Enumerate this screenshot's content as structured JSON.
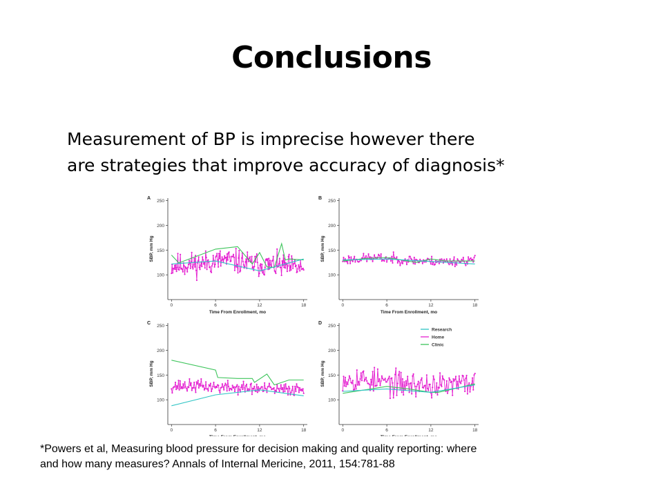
{
  "slide": {
    "title": "Conclusions",
    "body_lines": [
      "Measurement of BP is imprecise however there",
      "are strategies that improve accuracy of diagnosis*"
    ],
    "footnote_lines": [
      "*Powers et al, Measuring blood pressure for decision making and quality reporting: where",
      "and how many measures? Annals of Internal Mericine, 2011, 154:781-88"
    ]
  },
  "colors": {
    "research": "#2ec4c4",
    "home": "#e41fd0",
    "clinic": "#3cc45a",
    "axis": "#333333"
  },
  "chart_data": [
    {
      "panel": "A",
      "type": "line",
      "xlabel": "Time From Enrollment, mo",
      "ylabel": "SBP, mm Hg",
      "xticks": [
        0,
        6,
        12,
        18
      ],
      "yticks": [
        100,
        150,
        200,
        250
      ],
      "xlim": [
        -0.5,
        18.5
      ],
      "ylim": [
        50,
        255
      ],
      "series": [
        {
          "name": "Research",
          "color_key": "research",
          "x": [
            0,
            6,
            12,
            18
          ],
          "y": [
            122,
            128,
            108,
            132
          ]
        },
        {
          "name": "Clinic",
          "color_key": "clinic",
          "x": [
            0,
            1,
            6,
            9,
            11,
            12,
            13,
            14,
            15,
            15.5,
            16,
            18
          ],
          "y": [
            140,
            124,
            152,
            157,
            122,
            145,
            116,
            115,
            163,
            130,
            132,
            130
          ]
        },
        {
          "name": "Home",
          "color_key": "home",
          "generated": true,
          "n": 210,
          "x_start": 0,
          "x_end": 18,
          "base": [
            118,
            122,
            130,
            122,
            118,
            113
          ],
          "spread": 30,
          "seed": 11
        }
      ]
    },
    {
      "panel": "B",
      "type": "line",
      "xlabel": "Time From Enrollment, mo",
      "ylabel": "SBP, mm Hg",
      "xticks": [
        0,
        6,
        12,
        18
      ],
      "yticks": [
        100,
        150,
        200,
        250
      ],
      "xlim": [
        -0.5,
        18.5
      ],
      "ylim": [
        50,
        255
      ],
      "series": [
        {
          "name": "Research",
          "color_key": "research",
          "x": [
            0,
            6,
            12,
            18
          ],
          "y": [
            130,
            132,
            127,
            122
          ]
        },
        {
          "name": "Clinic",
          "color_key": "clinic",
          "x": [
            0,
            3,
            6,
            10,
            12,
            14,
            18
          ],
          "y": [
            128,
            133,
            135,
            125,
            132,
            128,
            128
          ]
        },
        {
          "name": "Home",
          "color_key": "home",
          "generated": true,
          "n": 160,
          "x_start": 0,
          "x_end": 18,
          "base": [
            130,
            134,
            132,
            128,
            127,
            130
          ],
          "spread": 12,
          "seed": 23
        }
      ]
    },
    {
      "panel": "C",
      "type": "line",
      "xlabel": "Time From Enrollment, mo",
      "ylabel": "SBP, mm Hg",
      "xticks": [
        0,
        6,
        12,
        18
      ],
      "yticks": [
        100,
        150,
        200,
        250
      ],
      "xlim": [
        -0.5,
        18.5
      ],
      "ylim": [
        50,
        255
      ],
      "series": [
        {
          "name": "Research",
          "color_key": "research",
          "x": [
            0,
            6,
            12,
            18
          ],
          "y": [
            88,
            110,
            120,
            108
          ]
        },
        {
          "name": "Clinic",
          "color_key": "clinic",
          "x": [
            0,
            6,
            6.3,
            9,
            11,
            11.3,
            13,
            14,
            16,
            18
          ],
          "y": [
            180,
            160,
            145,
            143,
            143,
            135,
            152,
            130,
            140,
            140
          ]
        },
        {
          "name": "Home",
          "color_key": "home",
          "generated": true,
          "n": 170,
          "x_start": 0,
          "x_end": 18,
          "base": [
            128,
            128,
            125,
            123,
            120,
            122
          ],
          "spread": 16,
          "seed": 37
        }
      ]
    },
    {
      "panel": "D",
      "type": "line",
      "xlabel": "Time From Enrollment, mo",
      "ylabel": "SBP, mm Hg",
      "xticks": [
        0,
        6,
        12,
        18
      ],
      "yticks": [
        100,
        150,
        200,
        250
      ],
      "xlim": [
        -0.5,
        18.5
      ],
      "ylim": [
        50,
        255
      ],
      "legend": {
        "placement": "top-right",
        "entries": [
          "Research",
          "Home",
          "Clinic"
        ]
      },
      "series": [
        {
          "name": "Research",
          "color_key": "research",
          "x": [
            0,
            6,
            12,
            18
          ],
          "y": [
            117,
            122,
            115,
            130
          ]
        },
        {
          "name": "Clinic",
          "color_key": "clinic",
          "x": [
            0,
            3,
            6,
            9,
            12,
            13,
            18
          ],
          "y": [
            113,
            120,
            127,
            122,
            115,
            115,
            132
          ]
        },
        {
          "name": "Home",
          "color_key": "home",
          "generated": true,
          "n": 160,
          "x_start": 0,
          "x_end": 18,
          "base": [
            145,
            140,
            132,
            130,
            128,
            135
          ],
          "spread": 32,
          "seed": 53
        }
      ]
    }
  ]
}
